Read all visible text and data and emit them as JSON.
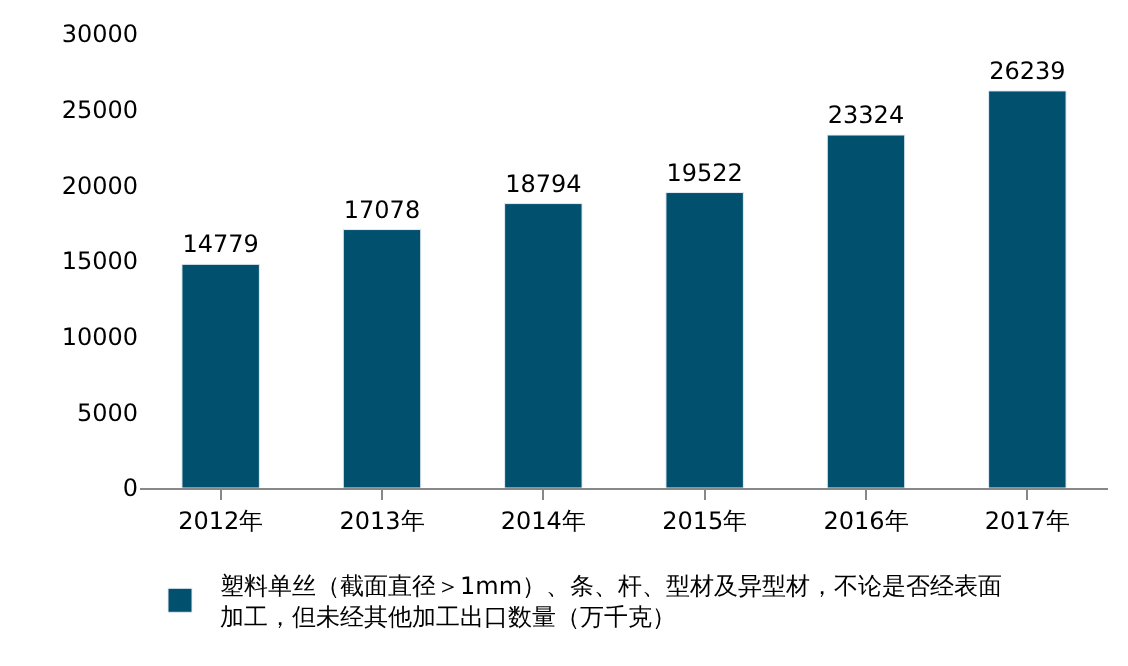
{
  "chart_data": {
    "type": "bar",
    "categories": [
      "2012年",
      "2013年",
      "2014年",
      "2015年",
      "2016年",
      "2017年"
    ],
    "series": [
      {
        "name": "塑料单丝（截面直径＞1mm）、条、杆、型材及异型材，不论是否经表面加工，但未经其他加工出口数量（万千克）",
        "color": "#00506e",
        "values": [
          14779,
          17078,
          18794,
          19522,
          23324,
          26239
        ]
      }
    ],
    "ylim": [
      0,
      30000
    ],
    "yticks": [
      0,
      5000,
      10000,
      15000,
      20000,
      25000,
      30000
    ],
    "data_labels": true,
    "legend": "bottom"
  }
}
